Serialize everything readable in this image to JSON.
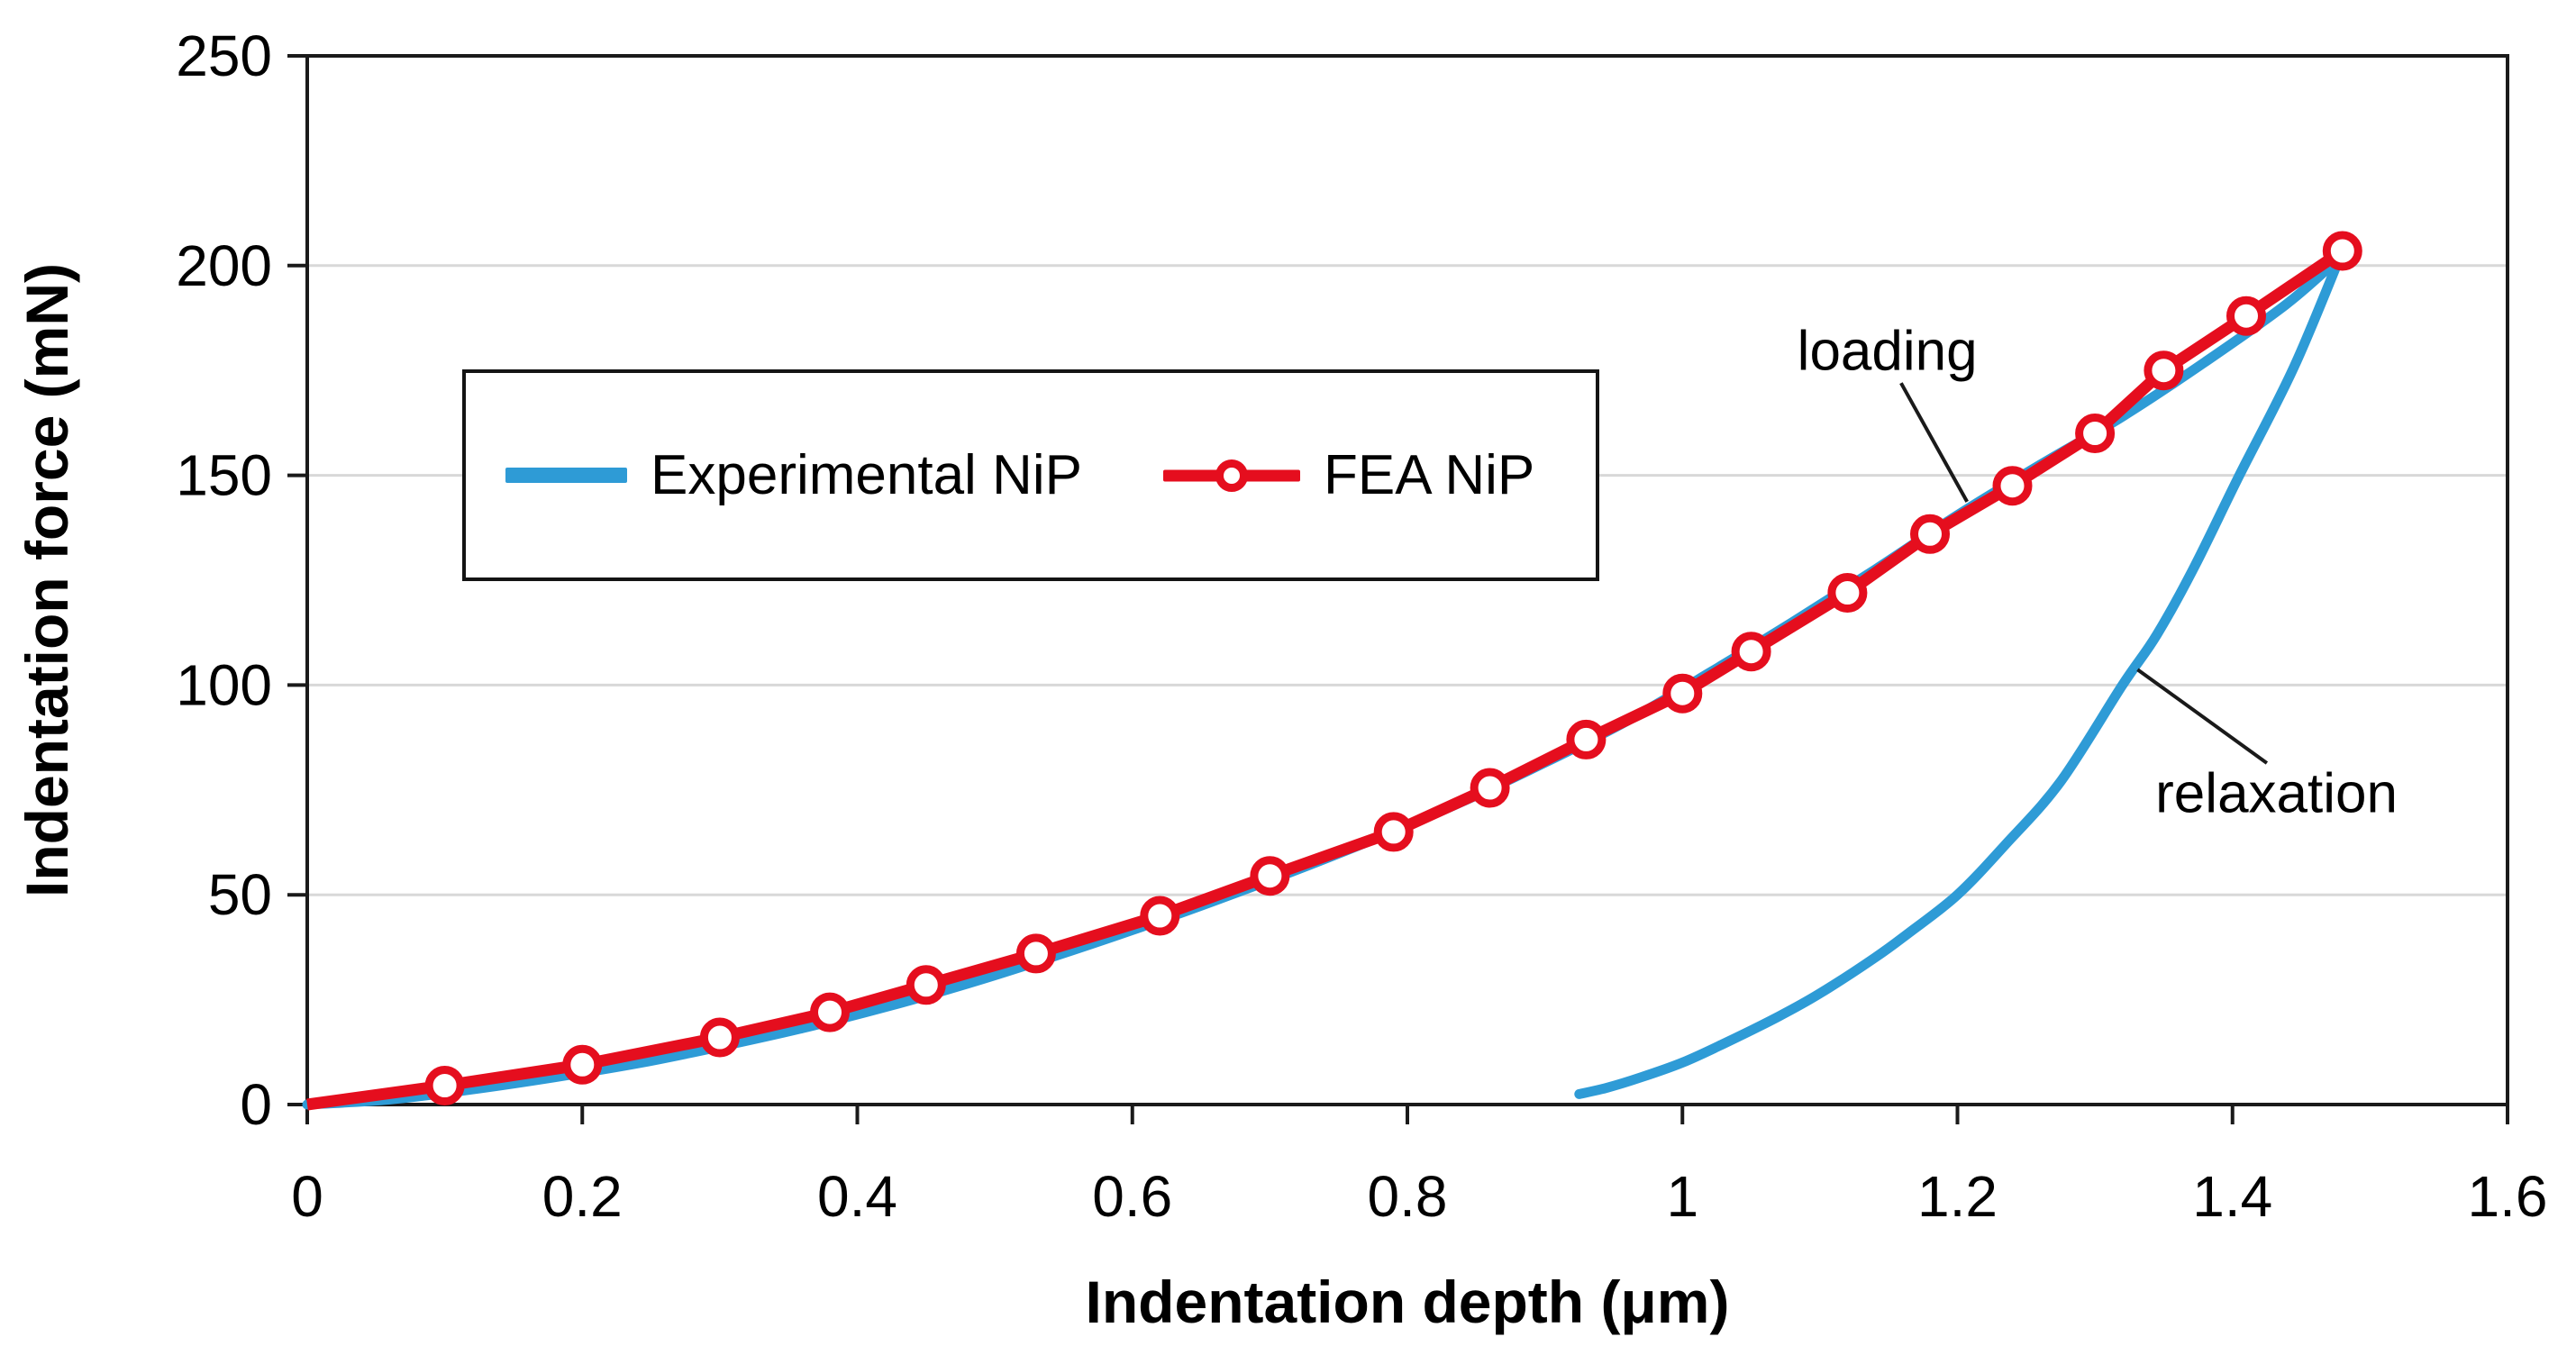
{
  "chart_data": {
    "type": "line",
    "title": "",
    "xlabel": "Indentation depth (μm)",
    "ylabel": "Indentation force (mN)",
    "xlim": [
      0,
      1.6
    ],
    "ylim": [
      0,
      250
    ],
    "x_ticks": [
      0,
      0.2,
      0.4,
      0.6,
      0.8,
      1.0,
      1.2,
      1.4,
      1.6
    ],
    "x_tick_labels": [
      "0",
      "0.2",
      "0.4",
      "0.6",
      "0.8",
      "1",
      "1.2",
      "1.4",
      "1.6"
    ],
    "y_ticks": [
      0,
      50,
      100,
      150,
      200,
      250
    ],
    "y_tick_labels": [
      "0",
      "50",
      "100",
      "150",
      "200",
      "250"
    ],
    "grid": "horizontal",
    "grid_color": "#D8D8D8",
    "axis_color": "#1a1a1a",
    "legend_position": "upper-left-box",
    "series": [
      {
        "name": "Experimental NiP",
        "color": "#2E9BD6",
        "line_width": 11,
        "marker": null,
        "segments": {
          "loading": [
            [
              0,
              0
            ],
            [
              0.06,
              1.2
            ],
            [
              0.12,
              3.6
            ],
            [
              0.18,
              6.5
            ],
            [
              0.24,
              9.8
            ],
            [
              0.3,
              13.8
            ],
            [
              0.36,
              18.2
            ],
            [
              0.42,
              23.2
            ],
            [
              0.48,
              28.8
            ],
            [
              0.54,
              35
            ],
            [
              0.6,
              41.6
            ],
            [
              0.66,
              48.6
            ],
            [
              0.72,
              56
            ],
            [
              0.78,
              63.8
            ],
            [
              0.84,
              72.2
            ],
            [
              0.9,
              81.5
            ],
            [
              0.96,
              91.5
            ],
            [
              1.02,
              103
            ],
            [
              1.08,
              115
            ],
            [
              1.14,
              127.5
            ],
            [
              1.2,
              140.5
            ],
            [
              1.26,
              152.5
            ],
            [
              1.32,
              164
            ],
            [
              1.38,
              177
            ],
            [
              1.44,
              191
            ],
            [
              1.48,
              202.5
            ]
          ],
          "relaxation": [
            [
              1.48,
              203.5
            ],
            [
              1.445,
              176
            ],
            [
              1.405,
              150
            ],
            [
              1.372,
              128
            ],
            [
              1.345,
              112
            ],
            [
              1.32,
              100
            ],
            [
              1.275,
              77
            ],
            [
              1.235,
              62
            ],
            [
              1.2,
              50
            ],
            [
              1.165,
              41
            ],
            [
              1.14,
              35
            ],
            [
              1.1,
              26.5
            ],
            [
              1.07,
              21
            ],
            [
              1.03,
              14.5
            ],
            [
              1.0,
              10
            ],
            [
              0.97,
              6.5
            ],
            [
              0.945,
              4
            ],
            [
              0.925,
              2.5
            ]
          ]
        }
      },
      {
        "name": "FEA NiP",
        "color": "#E50E1E",
        "line_width": 13,
        "marker": {
          "shape": "circle",
          "radius": 17.5,
          "stroke": 9,
          "fill": "#FFFFFF"
        },
        "marker_start_index": 1,
        "points": [
          [
            0,
            0
          ],
          [
            0.1,
            4.5
          ],
          [
            0.2,
            9.5
          ],
          [
            0.3,
            16
          ],
          [
            0.38,
            22
          ],
          [
            0.45,
            28.5
          ],
          [
            0.53,
            36
          ],
          [
            0.62,
            45
          ],
          [
            0.7,
            54.5
          ],
          [
            0.79,
            65
          ],
          [
            0.86,
            75.5
          ],
          [
            0.93,
            87
          ],
          [
            1.0,
            98
          ],
          [
            1.05,
            108
          ],
          [
            1.12,
            122
          ],
          [
            1.18,
            136
          ],
          [
            1.24,
            147.5
          ],
          [
            1.3,
            160
          ],
          [
            1.35,
            175
          ],
          [
            1.41,
            188
          ],
          [
            1.48,
            203.5
          ]
        ]
      }
    ],
    "annotations": [
      {
        "text": "loading",
        "text_xy": [
          1.149,
          179.5
        ],
        "line_from": [
          1.159,
          172.0
        ],
        "line_to": [
          1.207,
          143.7
        ]
      },
      {
        "text": "relaxation",
        "text_xy": [
          1.432,
          74.0
        ],
        "line_from": [
          1.331,
          103.7
        ],
        "line_to": [
          1.425,
          81.4
        ]
      }
    ]
  }
}
